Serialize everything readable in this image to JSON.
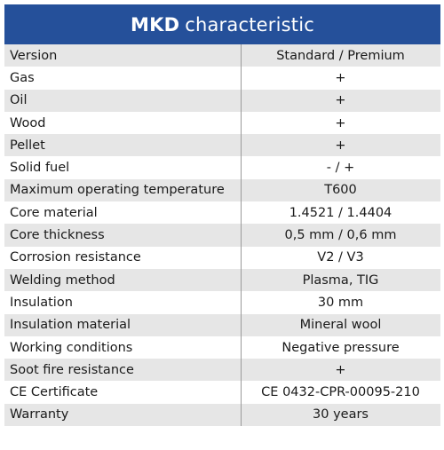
{
  "header": {
    "bold": "MKD",
    "rest": "characteristic"
  },
  "rows": [
    {
      "label": "Version",
      "value": "Standard / Premium"
    },
    {
      "label": "Gas",
      "value": "+"
    },
    {
      "label": "Oil",
      "value": "+"
    },
    {
      "label": "Wood",
      "value": "+"
    },
    {
      "label": "Pellet",
      "value": "+"
    },
    {
      "label": "Solid fuel",
      "value": "- / +"
    },
    {
      "label": "Maximum operating temperature",
      "value": "T600"
    },
    {
      "label": "Core material",
      "value": "1.4521 / 1.4404"
    },
    {
      "label": "Core thickness",
      "value": "0,5 mm / 0,6 mm"
    },
    {
      "label": "Corrosion resistance",
      "value": "V2 / V3"
    },
    {
      "label": "Welding method",
      "value": "Plasma, TIG"
    },
    {
      "label": "Insulation",
      "value": "30 mm"
    },
    {
      "label": "Insulation material",
      "value": "Mineral wool"
    },
    {
      "label": "Working conditions",
      "value": "Negative pressure"
    },
    {
      "label": "Soot fire resistance",
      "value": "+"
    },
    {
      "label": "CE Certificate",
      "value": "CE 0432-CPR-00095-210"
    },
    {
      "label": "Warranty",
      "value": "30 years"
    }
  ],
  "colors": {
    "header_bg": "#25509a",
    "header_text": "#ffffff",
    "row_shade": "#e6e6e6",
    "text": "#1a1a1a",
    "divider": "#9a9a9a"
  }
}
